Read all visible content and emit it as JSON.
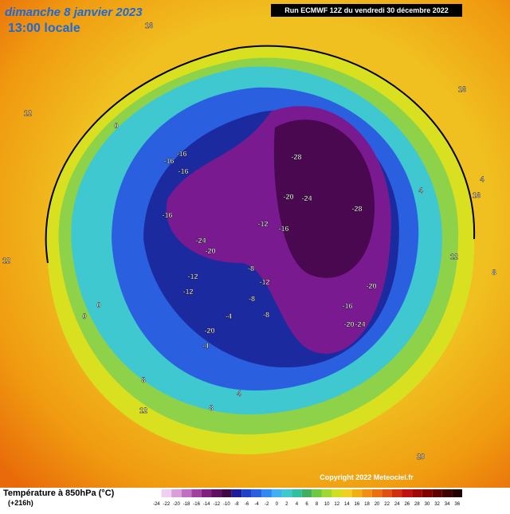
{
  "header": {
    "title": "dimanche 8 janvier 2023",
    "subtitle": "13:00 locale",
    "run": "Run ECMWF 12Z du vendredi 30 décembre 2022"
  },
  "footer": {
    "variable": "Température à 850hPa (°C)",
    "lead": "(+216h)",
    "copyright": "Copyright 2022 Meteociel.fr"
  },
  "colorbar": {
    "ticks": [
      -24,
      -22,
      -20,
      -18,
      -16,
      -14,
      -12,
      -10,
      -8,
      -6,
      -4,
      -2,
      0,
      2,
      4,
      6,
      8,
      10,
      12,
      14,
      16,
      18,
      20,
      22,
      24,
      26,
      28,
      30,
      32,
      34,
      36
    ]
  },
  "map_labels": [
    -28,
    -28,
    -24,
    -20,
    -20,
    -16,
    -16,
    -16,
    -16,
    -24,
    -20,
    -12,
    -12,
    -12,
    -8,
    -8,
    -8,
    -4,
    -4,
    -16,
    -20,
    -24,
    -16,
    -20,
    -12,
    0,
    0,
    4,
    8,
    8,
    12,
    12,
    12,
    16,
    16,
    16,
    20,
    4,
    4,
    8,
    12,
    0
  ]
}
